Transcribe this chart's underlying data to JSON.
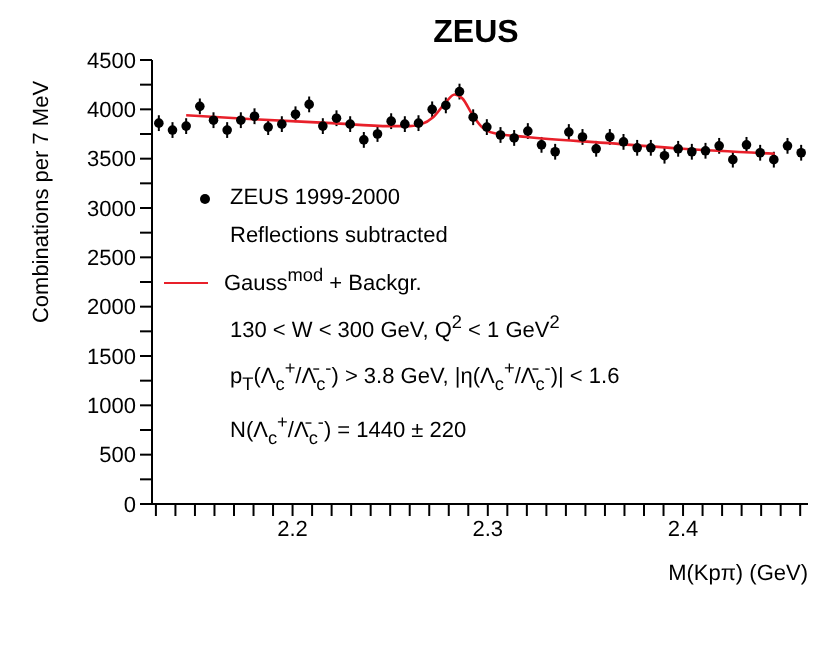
{
  "chart_data": {
    "type": "scatter",
    "title": "ZEUS",
    "xlabel": "M(Kpπ)  (GeV)",
    "ylabel": "Combinations per 7 MeV",
    "xlim": [
      2.128,
      2.464
    ],
    "ylim": [
      0,
      4500
    ],
    "xticks": [
      {
        "value": 2.13,
        "label": null
      },
      {
        "value": 2.14,
        "label": null
      },
      {
        "value": 2.15,
        "label": null
      },
      {
        "value": 2.16,
        "label": null
      },
      {
        "value": 2.17,
        "label": null
      },
      {
        "value": 2.18,
        "label": null
      },
      {
        "value": 2.19,
        "label": null
      },
      {
        "value": 2.2,
        "label": "2.2"
      },
      {
        "value": 2.21,
        "label": null
      },
      {
        "value": 2.22,
        "label": null
      },
      {
        "value": 2.23,
        "label": null
      },
      {
        "value": 2.24,
        "label": null
      },
      {
        "value": 2.25,
        "label": null
      },
      {
        "value": 2.26,
        "label": null
      },
      {
        "value": 2.27,
        "label": null
      },
      {
        "value": 2.28,
        "label": null
      },
      {
        "value": 2.29,
        "label": null
      },
      {
        "value": 2.3,
        "label": "2.3"
      },
      {
        "value": 2.31,
        "label": null
      },
      {
        "value": 2.32,
        "label": null
      },
      {
        "value": 2.33,
        "label": null
      },
      {
        "value": 2.34,
        "label": null
      },
      {
        "value": 2.35,
        "label": null
      },
      {
        "value": 2.36,
        "label": null
      },
      {
        "value": 2.37,
        "label": null
      },
      {
        "value": 2.38,
        "label": null
      },
      {
        "value": 2.39,
        "label": null
      },
      {
        "value": 2.4,
        "label": "2.4"
      },
      {
        "value": 2.41,
        "label": null
      },
      {
        "value": 2.42,
        "label": null
      },
      {
        "value": 2.43,
        "label": null
      },
      {
        "value": 2.44,
        "label": null
      },
      {
        "value": 2.45,
        "label": null
      },
      {
        "value": 2.46,
        "label": null
      }
    ],
    "yticks": [
      0,
      {
        "value": 250,
        "label": null
      },
      500,
      {
        "value": 750,
        "label": null
      },
      1000,
      {
        "value": 1250,
        "label": null
      },
      1500,
      {
        "value": 1750,
        "label": null
      },
      2000,
      {
        "value": 2250,
        "label": null
      },
      2500,
      {
        "value": 2750,
        "label": null
      },
      3000,
      {
        "value": 3250,
        "label": null
      },
      3500,
      {
        "value": 3750,
        "label": null
      },
      4000,
      {
        "value": 4250,
        "label": null
      },
      4500
    ],
    "legend": "top left",
    "annotations": [
      "Reflections subtracted",
      "130 < W < 300 GeV, Q$^{2}$ < 1 GeV$^{2}$",
      "p$_{T}$(Λ$_{c}$$^{+}$/Λ̄$_{c}$$^{-}$) > 3.8 GeV,  |η(Λ$_{c}$$^{+}$/Λ̄$_{c}$$^{-}$)| < 1.6",
      "N(Λ$_{c}$$^{+}$/Λ̄$_{c}$$^{-}$) = 1440 ± 220"
    ],
    "series": [
      {
        "name": "ZEUS 1999-2000",
        "color": "#000000",
        "marker": "circle",
        "x": [
          2.1315,
          2.1385,
          2.1455,
          2.1525,
          2.1595,
          2.1665,
          2.1735,
          2.1805,
          2.1875,
          2.1945,
          2.2015,
          2.2085,
          2.2155,
          2.2225,
          2.2295,
          2.2365,
          2.2435,
          2.2505,
          2.2575,
          2.2645,
          2.2715,
          2.2785,
          2.2855,
          2.2925,
          2.2995,
          2.3065,
          2.3135,
          2.3205,
          2.3275,
          2.3345,
          2.3415,
          2.3485,
          2.3555,
          2.3625,
          2.3695,
          2.3765,
          2.3835,
          2.3905,
          2.3975,
          2.4045,
          2.4115,
          2.4185,
          2.4255,
          2.4325,
          2.4395,
          2.4465,
          2.4535,
          2.4605
        ],
        "values": [
          3860,
          3790,
          3830,
          4030,
          3890,
          3790,
          3890,
          3930,
          3820,
          3850,
          3950,
          4050,
          3830,
          3910,
          3850,
          3690,
          3750,
          3880,
          3850,
          3860,
          4000,
          4040,
          4180,
          3920,
          3820,
          3740,
          3710,
          3780,
          3640,
          3570,
          3770,
          3720,
          3600,
          3720,
          3670,
          3610,
          3610,
          3530,
          3600,
          3570,
          3580,
          3630,
          3490,
          3640,
          3560,
          3490,
          3630,
          3560
        ],
        "errors": [
          80,
          80,
          80,
          80,
          80,
          80,
          80,
          80,
          80,
          80,
          80,
          80,
          80,
          80,
          80,
          80,
          80,
          80,
          80,
          80,
          80,
          80,
          80,
          80,
          80,
          80,
          80,
          80,
          80,
          80,
          80,
          80,
          80,
          80,
          80,
          80,
          80,
          80,
          80,
          80,
          80,
          80,
          80,
          80,
          80,
          80,
          80,
          80
        ]
      },
      {
        "name": "Gauss$^{mod}$ + Backgr.",
        "type": "line",
        "color": "#e8202a",
        "line_style": "solid",
        "x": [
          2.1455,
          2.18,
          2.22,
          2.25,
          2.26,
          2.266,
          2.272,
          2.278,
          2.283,
          2.287,
          2.292,
          2.297,
          2.303,
          2.32,
          2.36,
          2.4,
          2.447
        ],
        "values": [
          3940,
          3900,
          3860,
          3830,
          3830,
          3850,
          3920,
          4060,
          4150,
          4110,
          3950,
          3820,
          3760,
          3720,
          3660,
          3600,
          3550
        ]
      }
    ]
  }
}
